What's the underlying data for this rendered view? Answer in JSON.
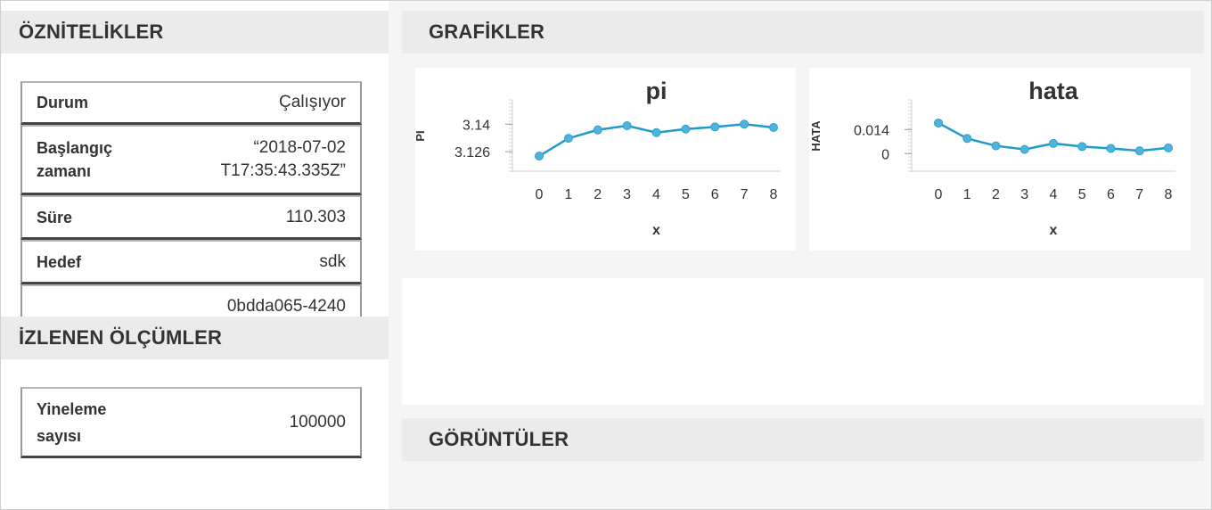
{
  "attributes": {
    "title": "ÖZNİTELİKLER",
    "rows": [
      {
        "key": "Durum",
        "value": "Çalışıyor"
      },
      {
        "key_line1": "Başlangıç",
        "key_line2": "zamanı",
        "value_line1": "“2018-07-02",
        "value_line2": "T17:35:43.335Z”"
      },
      {
        "key": "Süre",
        "value": "110.303"
      },
      {
        "key": "Hedef",
        "value": "sdk"
      },
      {
        "key": "",
        "value": "0bdda065-4240"
      }
    ]
  },
  "metrics": {
    "title": "İZLENEN ÖLÇÜMLER",
    "rows": [
      {
        "key_line1": "Yineleme",
        "key_line2": "sayısı",
        "value": "100000"
      }
    ]
  },
  "graphs": {
    "title": "GRAFİKLER"
  },
  "images": {
    "title": "GÖRÜNTÜLER"
  },
  "chart_data": [
    {
      "type": "line",
      "title": "pi",
      "xlabel": "x",
      "ylabel": "PI",
      "x": [
        0,
        1,
        2,
        3,
        4,
        5,
        6,
        7,
        8
      ],
      "series": [
        {
          "values": [
            3.1238,
            3.1328,
            3.1371,
            3.1392,
            3.1357,
            3.1375,
            3.1386,
            3.14,
            3.1383
          ]
        }
      ],
      "yticks": [
        3.126,
        3.14
      ],
      "ytick_labels": [
        "3.126",
        "3.14"
      ],
      "ylim": [
        3.122,
        3.146
      ],
      "color": "#1f9ac9",
      "grid": false
    },
    {
      "type": "line",
      "title": "hata",
      "xlabel": "x",
      "ylabel": "HATA",
      "x": [
        0,
        1,
        2,
        3,
        4,
        5,
        6,
        7,
        8
      ],
      "series": [
        {
          "values": [
            0.0178,
            0.0088,
            0.0045,
            0.0024,
            0.0059,
            0.0041,
            0.003,
            0.0016,
            0.0033
          ]
        }
      ],
      "yticks": [
        0,
        0.014
      ],
      "ytick_labels": [
        "0",
        "0.014"
      ],
      "ylim": [
        -0.0035,
        0.024
      ],
      "color": "#1f9ac9",
      "grid": false
    }
  ]
}
